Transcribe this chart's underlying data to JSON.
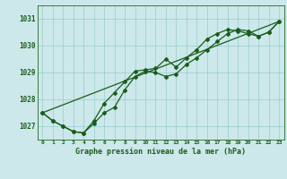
{
  "title": "Graphe pression niveau de la mer (hPa)",
  "bg_color": "#cce8ea",
  "grid_color": "#99cccc",
  "line_color": "#1a5c1a",
  "ylim": [
    1026.5,
    1031.5
  ],
  "xlim": [
    -0.5,
    23.5
  ],
  "yticks": [
    1027,
    1028,
    1029,
    1030,
    1031
  ],
  "xticks": [
    0,
    1,
    2,
    3,
    4,
    5,
    6,
    7,
    8,
    9,
    10,
    11,
    12,
    13,
    14,
    15,
    16,
    17,
    18,
    19,
    20,
    21,
    22,
    23
  ],
  "line1_x": [
    0,
    23
  ],
  "line1_y": [
    1027.5,
    1030.9
  ],
  "line2_x": [
    0,
    1,
    2,
    3,
    4,
    5,
    6,
    7,
    8,
    9,
    10,
    11,
    12,
    13,
    14,
    15,
    16,
    17,
    18,
    19,
    20,
    21,
    22,
    23
  ],
  "line2_y": [
    1027.5,
    1027.2,
    1027.0,
    1026.8,
    1026.75,
    1027.1,
    1027.5,
    1027.7,
    1028.35,
    1028.85,
    1029.05,
    1029.0,
    1028.85,
    1028.95,
    1029.3,
    1029.55,
    1029.85,
    1030.15,
    1030.45,
    1030.6,
    1030.55,
    1030.35,
    1030.5,
    1030.9
  ],
  "line3_x": [
    0,
    1,
    2,
    3,
    4,
    5,
    6,
    7,
    8,
    9,
    10,
    11,
    12,
    13,
    14,
    15,
    16,
    17,
    18,
    19,
    20,
    21,
    22,
    23
  ],
  "line3_y": [
    1027.5,
    1027.2,
    1027.0,
    1026.8,
    1026.75,
    1027.2,
    1027.85,
    1028.25,
    1028.65,
    1029.05,
    1029.1,
    1029.15,
    1029.5,
    1029.2,
    1029.55,
    1029.85,
    1030.25,
    1030.45,
    1030.6,
    1030.55,
    1030.45,
    1030.35,
    1030.5,
    1030.9
  ]
}
